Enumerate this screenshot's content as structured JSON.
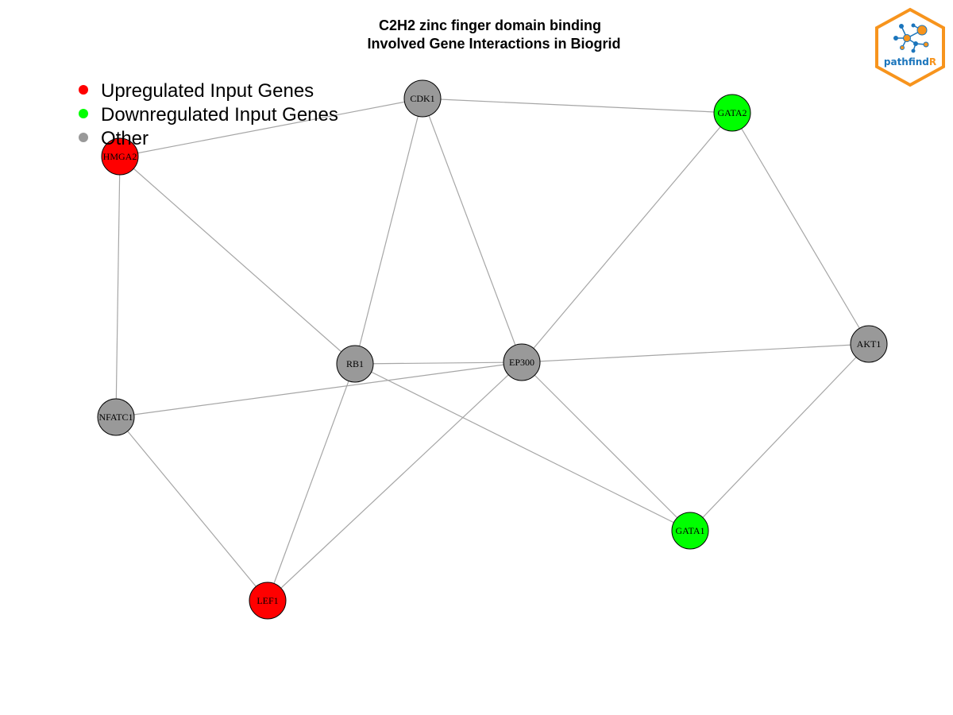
{
  "title": {
    "line1": "C2H2 zinc finger domain binding",
    "line2": "Involved Gene Interactions in Biogrid"
  },
  "legend": [
    {
      "label": "Upregulated Input Genes",
      "color": "#ff0000"
    },
    {
      "label": "Downregulated Input Genes",
      "color": "#00ff00"
    },
    {
      "label": "Other",
      "color": "#999999"
    }
  ],
  "colors": {
    "up": "#ff0000",
    "down": "#00ff00",
    "other": "#999999",
    "edge": "#a6a6a6",
    "logo_orange": "#f7941d",
    "logo_blue": "#1b75bc"
  },
  "logo": {
    "text_main": "pathfind",
    "text_accent": "R"
  },
  "nodes": [
    {
      "id": "CDK1",
      "label": "CDK1",
      "group": "other"
    },
    {
      "id": "GATA2",
      "label": "GATA2",
      "group": "down"
    },
    {
      "id": "HMGA2",
      "label": "HMGA2",
      "group": "up"
    },
    {
      "id": "RB1",
      "label": "RB1",
      "group": "other"
    },
    {
      "id": "EP300",
      "label": "EP300",
      "group": "other"
    },
    {
      "id": "AKT1",
      "label": "AKT1",
      "group": "other"
    },
    {
      "id": "NFATC1",
      "label": "NFATC1",
      "group": "other"
    },
    {
      "id": "GATA1",
      "label": "GATA1",
      "group": "down"
    },
    {
      "id": "LEF1",
      "label": "LEF1",
      "group": "up"
    }
  ],
  "edges": [
    [
      "HMGA2",
      "CDK1"
    ],
    [
      "CDK1",
      "GATA2"
    ],
    [
      "CDK1",
      "RB1"
    ],
    [
      "CDK1",
      "EP300"
    ],
    [
      "GATA2",
      "EP300"
    ],
    [
      "GATA2",
      "AKT1"
    ],
    [
      "HMGA2",
      "RB1"
    ],
    [
      "HMGA2",
      "NFATC1"
    ],
    [
      "RB1",
      "EP300"
    ],
    [
      "RB1",
      "LEF1"
    ],
    [
      "RB1",
      "GATA1"
    ],
    [
      "EP300",
      "AKT1"
    ],
    [
      "EP300",
      "NFATC1"
    ],
    [
      "EP300",
      "LEF1"
    ],
    [
      "EP300",
      "GATA1"
    ],
    [
      "AKT1",
      "GATA1"
    ],
    [
      "NFATC1",
      "LEF1"
    ]
  ]
}
